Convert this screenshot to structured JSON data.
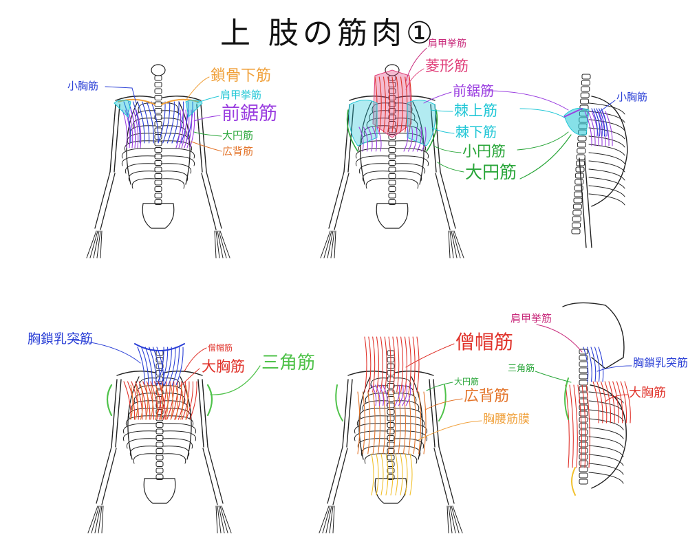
{
  "title": "上 肢の筋肉①",
  "colors": {
    "blue": "#2a3fd6",
    "orange": "#f0a13c",
    "cyan": "#22c7d6",
    "purple": "#9b3fe0",
    "green": "#2aa63a",
    "lightgreen": "#4fc24a",
    "darkorange": "#e3742a",
    "red": "#e0322a",
    "pink": "#e0407a",
    "magenta": "#c8287a",
    "yellow": "#f2c12e"
  },
  "panels": [
    {
      "name": "front-view",
      "labels": [
        {
          "text": "小胸筋",
          "color": "#2a3fd6"
        },
        {
          "text": "鎖骨下筋",
          "color": "#f0a13c"
        },
        {
          "text": "肩甲挙筋",
          "color": "#22c7d6"
        },
        {
          "text": "前鋸筋",
          "color": "#9b3fe0"
        },
        {
          "text": "大円筋",
          "color": "#2aa63a"
        },
        {
          "text": "広背筋",
          "color": "#e3742a"
        }
      ]
    },
    {
      "name": "back-view",
      "labels": [
        {
          "text": "肩甲挙筋",
          "color": "#c8287a"
        },
        {
          "text": "菱形筋",
          "color": "#e0407a"
        },
        {
          "text": "前鋸筋",
          "color": "#9b3fe0"
        },
        {
          "text": "棘上筋",
          "color": "#22c7d6"
        },
        {
          "text": "棘下筋",
          "color": "#22c7d6"
        },
        {
          "text": "小円筋",
          "color": "#2aa63a"
        },
        {
          "text": "大円筋",
          "color": "#2aa63a"
        }
      ]
    },
    {
      "name": "side-view",
      "labels": [
        {
          "text": "小胸筋",
          "color": "#2a3fd6"
        }
      ]
    },
    {
      "name": "front-view-2",
      "labels": [
        {
          "text": "胸鎖乳突筋",
          "color": "#2a3fd6"
        },
        {
          "text": "僧帽筋",
          "color": "#e0322a"
        },
        {
          "text": "大胸筋",
          "color": "#e0322a"
        },
        {
          "text": "三角筋",
          "color": "#4fc24a"
        }
      ]
    },
    {
      "name": "back-view-2",
      "labels": [
        {
          "text": "僧帽筋",
          "color": "#e0322a"
        },
        {
          "text": "大円筋",
          "color": "#2aa63a"
        },
        {
          "text": "広背筋",
          "color": "#e3742a"
        },
        {
          "text": "胸腰筋膜",
          "color": "#f0a13c"
        }
      ]
    },
    {
      "name": "side-view-2",
      "labels": [
        {
          "text": "肩甲挙筋",
          "color": "#c8287a"
        },
        {
          "text": "胸鎖乳突筋",
          "color": "#2a3fd6"
        },
        {
          "text": "三角筋",
          "color": "#2aa63a"
        },
        {
          "text": "大胸筋",
          "color": "#e0322a"
        }
      ]
    }
  ]
}
